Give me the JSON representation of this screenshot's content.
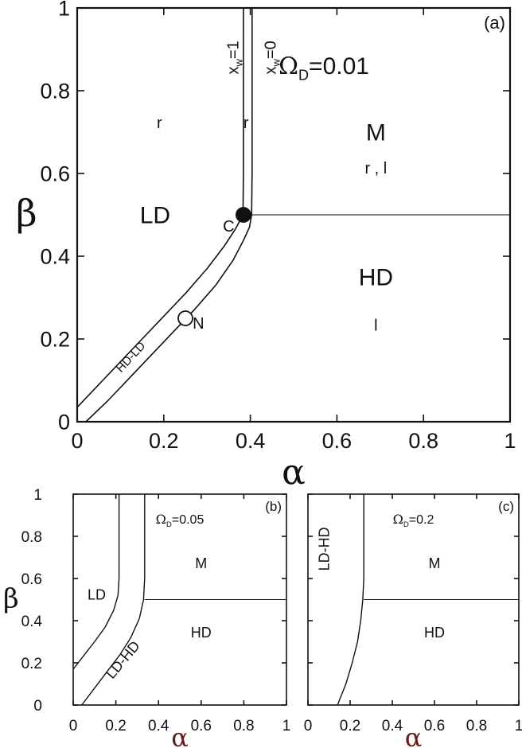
{
  "chart_data": [
    {
      "panel": "a",
      "type": "line",
      "panel_label": "(a)",
      "annotation": {
        "symbol": "Ω",
        "subscript": "D",
        "value": "=0.01"
      },
      "xlabel": "α",
      "ylabel": "β",
      "xlim": [
        0,
        1
      ],
      "ylim": [
        0,
        1
      ],
      "xticks": [
        0,
        0.2,
        0.4,
        0.6,
        0.8,
        1
      ],
      "yticks": [
        0,
        0.2,
        0.4,
        0.6,
        0.8,
        1
      ],
      "xtick_labels": [
        "0",
        "0.2",
        "0.4",
        "0.6",
        "0.8",
        "1"
      ],
      "ytick_labels": [
        "0",
        "0.2",
        "0.4",
        "0.6",
        "0.8",
        "1"
      ],
      "series": [
        {
          "name": "x_w=1",
          "x": [
            0.0,
            0.05,
            0.1,
            0.15,
            0.2,
            0.25,
            0.3,
            0.34,
            0.365,
            0.378,
            0.383,
            0.384,
            0.384
          ],
          "y": [
            0.035,
            0.09,
            0.145,
            0.2,
            0.255,
            0.31,
            0.37,
            0.425,
            0.465,
            0.49,
            0.505,
            0.6,
            1.0
          ]
        },
        {
          "name": "x_w=0",
          "x": [
            0.02,
            0.07,
            0.12,
            0.17,
            0.22,
            0.27,
            0.32,
            0.36,
            0.385,
            0.398,
            0.403,
            0.404,
            0.404
          ],
          "y": [
            0.0,
            0.05,
            0.105,
            0.16,
            0.215,
            0.27,
            0.33,
            0.39,
            0.44,
            0.47,
            0.5,
            0.6,
            1.0
          ]
        },
        {
          "name": "M-HD boundary",
          "x": [
            0.404,
            1.0
          ],
          "y": [
            0.5,
            0.5
          ]
        }
      ],
      "points": [
        {
          "label": "C",
          "x": 0.384,
          "y": 0.5,
          "filled": true
        },
        {
          "label": "N",
          "x": 0.25,
          "y": 0.25,
          "filled": false
        }
      ],
      "region_labels": [
        {
          "text": "LD",
          "x": 0.18,
          "y": 0.48,
          "size": "large"
        },
        {
          "text": "M",
          "x": 0.69,
          "y": 0.68,
          "size": "large"
        },
        {
          "text": "HD",
          "x": 0.69,
          "y": 0.33,
          "size": "large"
        },
        {
          "text": "r",
          "x": 0.19,
          "y": 0.71,
          "size": "small"
        },
        {
          "text": "r",
          "x": 0.39,
          "y": 0.71,
          "size": "small"
        },
        {
          "text": "r , l",
          "x": 0.69,
          "y": 0.6,
          "size": "small"
        },
        {
          "text": "l",
          "x": 0.69,
          "y": 0.22,
          "size": "small"
        },
        {
          "text": "C",
          "x": 0.35,
          "y": 0.46,
          "size": "small"
        },
        {
          "text": "N",
          "x": 0.28,
          "y": 0.225,
          "size": "small"
        }
      ],
      "line_labels": [
        {
          "base": "x",
          "sub": "w",
          "value": "=1"
        },
        {
          "base": "x",
          "sub": "w",
          "value": "=0"
        },
        {
          "text": "HD-LD"
        }
      ]
    },
    {
      "panel": "b",
      "type": "line",
      "panel_label": "(b)",
      "annotation": {
        "symbol": "Ω",
        "subscript": "D",
        "value": "=0.05"
      },
      "xlabel": "α",
      "ylabel": "β",
      "xlim": [
        0,
        1
      ],
      "ylim": [
        0,
        1
      ],
      "xtick_labels": [
        "0",
        "0.2",
        "0.4",
        "0.6",
        "0.8",
        "1"
      ],
      "ytick_labels": [
        "0",
        "0.2",
        "0.4",
        "0.6",
        "0.8",
        "1"
      ],
      "series": [
        {
          "name": "left boundary",
          "x": [
            0.0,
            0.05,
            0.1,
            0.15,
            0.19,
            0.21,
            0.215,
            0.215
          ],
          "y": [
            0.17,
            0.235,
            0.3,
            0.37,
            0.45,
            0.52,
            0.6,
            1.0
          ]
        },
        {
          "name": "right boundary",
          "x": [
            0.04,
            0.1,
            0.16,
            0.22,
            0.27,
            0.31,
            0.33,
            0.335,
            0.335
          ],
          "y": [
            0.0,
            0.08,
            0.16,
            0.24,
            0.32,
            0.41,
            0.5,
            0.6,
            1.0
          ]
        },
        {
          "name": "M-HD boundary",
          "x": [
            0.335,
            1.0
          ],
          "y": [
            0.5,
            0.5
          ]
        }
      ],
      "region_labels": [
        {
          "text": "LD",
          "x": 0.11,
          "y": 0.5
        },
        {
          "text": "M",
          "x": 0.6,
          "y": 0.65
        },
        {
          "text": "HD",
          "x": 0.6,
          "y": 0.32
        },
        {
          "text": "LD-HD",
          "x": 0.25,
          "y": 0.2,
          "rotate": -50
        }
      ]
    },
    {
      "panel": "c",
      "type": "line",
      "panel_label": "(c)",
      "annotation": {
        "symbol": "Ω",
        "subscript": "D",
        "value": "=0.2"
      },
      "xlabel": "α",
      "xlim": [
        0,
        1
      ],
      "ylim": [
        0,
        1
      ],
      "xtick_labels": [
        "0",
        "0.2",
        "0.4",
        "0.6",
        "0.8",
        "1"
      ],
      "series": [
        {
          "name": "boundary",
          "x": [
            0.14,
            0.18,
            0.21,
            0.235,
            0.25,
            0.26,
            0.265,
            0.265
          ],
          "y": [
            0.0,
            0.1,
            0.2,
            0.3,
            0.4,
            0.5,
            0.6,
            1.0
          ]
        },
        {
          "name": "M-HD boundary",
          "x": [
            0.265,
            1.0
          ],
          "y": [
            0.5,
            0.5
          ]
        }
      ],
      "region_labels": [
        {
          "text": "M",
          "x": 0.6,
          "y": 0.65
        },
        {
          "text": "HD",
          "x": 0.6,
          "y": 0.32
        },
        {
          "text": "LD-HD",
          "x": 0.1,
          "y": 0.74,
          "rotate": -90
        }
      ]
    }
  ]
}
